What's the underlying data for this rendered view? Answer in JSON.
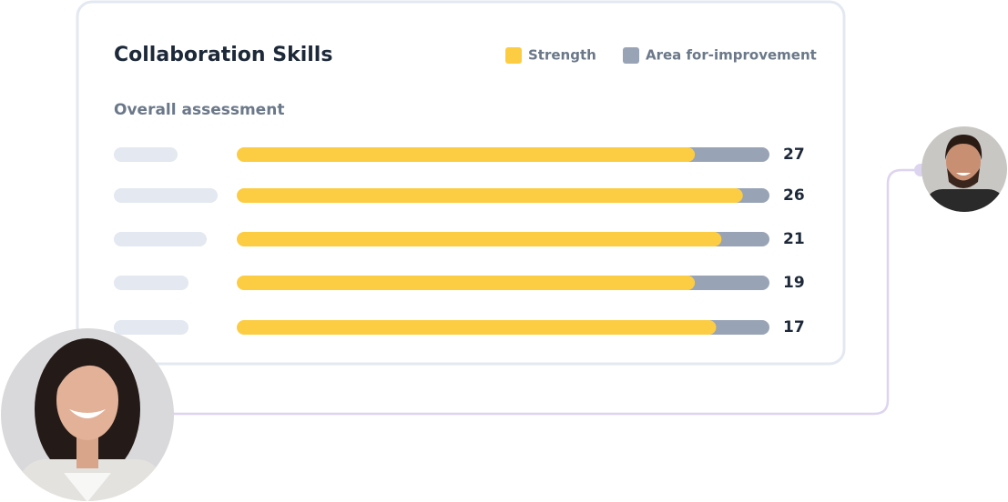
{
  "chart_data": {
    "type": "bar",
    "orientation": "horizontal",
    "stacked": true,
    "title": "Collaboration Skills",
    "subtitle": "Overall assessment",
    "categories": [
      null,
      null,
      null,
      null,
      null
    ],
    "series": [
      {
        "name": "Strength",
        "color": "#fccd43",
        "values": [
          86,
          95,
          91,
          86,
          90
        ]
      },
      {
        "name": "Area for-improvement",
        "color": "#98a4b6",
        "values": [
          14,
          5,
          9,
          14,
          10
        ]
      }
    ],
    "xlim": [
      0,
      100
    ],
    "scores": [
      27,
      26,
      21,
      19,
      17
    ]
  }
}
